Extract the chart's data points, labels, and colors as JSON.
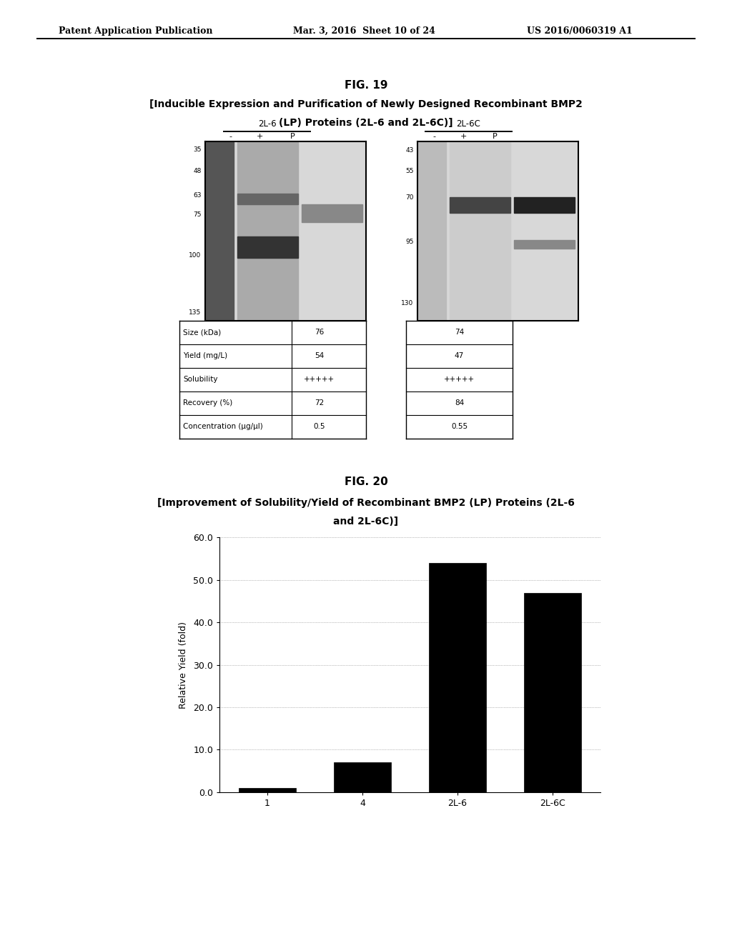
{
  "header_left": "Patent Application Publication",
  "header_mid": "Mar. 3, 2016  Sheet 10 of 24",
  "header_right": "US 2016/0060319 A1",
  "fig19_title": "FIG. 19",
  "fig19_subtitle1": "[Inducible Expression and Purification of Newly Designed Recombinant BMP2",
  "fig19_subtitle2": "(LP) Proteins (2L-6 and 2L-6C)]",
  "gel_label_left": "2L-6",
  "gel_label_right": "2L-6C",
  "gel_cols_left": [
    "-",
    "+",
    "P"
  ],
  "gel_cols_right": [
    "-",
    "+",
    "P"
  ],
  "gel_markers_left": [
    135,
    100,
    75,
    63,
    48,
    35
  ],
  "gel_markers_right": [
    130,
    95,
    70,
    55,
    43
  ],
  "table_rows": [
    "Size (kDa)",
    "Yield (mg/L)",
    "Solubility",
    "Recovery (%)",
    "Concentration (μg/μl)"
  ],
  "table_2L6": [
    "76",
    "54",
    "+++++",
    "72",
    "0.5"
  ],
  "table_2L6C": [
    "74",
    "47",
    "+++++",
    "84",
    "0.55"
  ],
  "fig20_title": "FIG. 20",
  "fig20_subtitle1": "[Improvement of Solubility/Yield of Recombinant BMP2 (LP) Proteins (2L-6",
  "fig20_subtitle2": "and 2L-6C)]",
  "bar_categories": [
    "1",
    "4",
    "2L-6",
    "2L-6C"
  ],
  "bar_values": [
    1.0,
    7.0,
    54.0,
    47.0
  ],
  "bar_color": "#000000",
  "ylabel": "Relative Yield (fold)",
  "ylim": [
    0,
    60
  ],
  "yticks": [
    0.0,
    10.0,
    20.0,
    30.0,
    40.0,
    50.0,
    60.0
  ],
  "background_color": "#ffffff"
}
